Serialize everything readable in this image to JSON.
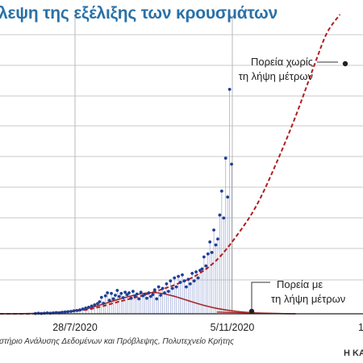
{
  "chart_data": {
    "type": "scatter",
    "title": "λεψη της εξέλιξης των κρουσμάτων",
    "x_tick_labels": [
      "28/7/2020",
      "5/11/2020",
      "1"
    ],
    "annotations": {
      "no_measures": [
        "Πορεία χωρίς",
        "τη λήψη μέτρων"
      ],
      "with_measures": [
        "Πορεία με",
        "τη λήψη μέτρων"
      ]
    },
    "source": "στήριο Ανάλυσης Δεδομένων και Πρόβλεψης, Πολυτεχνείο Κρήτης",
    "credit": "Η ΚΑ",
    "colors": {
      "title": "#2a71a7",
      "observed_points": "#1f3f93",
      "no_measures_curve": "#b01e1e",
      "with_measures_curve": "#a52a2a",
      "grid": "#c8c8c8"
    },
    "grid": true,
    "x_range_days": [
      0,
      352
    ],
    "y_range": [
      0,
      1
    ],
    "series": [
      {
        "key": "observed",
        "style": "points-with-stems",
        "points": [
          [
            36,
            0.001
          ],
          [
            39,
            0.002
          ],
          [
            42,
            0.001
          ],
          [
            45,
            0.002
          ],
          [
            48,
            0.003
          ],
          [
            51,
            0.002
          ],
          [
            54,
            0.003
          ],
          [
            57,
            0.004
          ],
          [
            60,
            0.003
          ],
          [
            63,
            0.005
          ],
          [
            66,
            0.006
          ],
          [
            69,
            0.007
          ],
          [
            72,
            0.008
          ],
          [
            75,
            0.01
          ],
          [
            78,
            0.011
          ],
          [
            81,
            0.013
          ],
          [
            84,
            0.016
          ],
          [
            87,
            0.019
          ],
          [
            90,
            0.022
          ],
          [
            93,
            0.026
          ],
          [
            96,
            0.03
          ],
          [
            99,
            0.034
          ],
          [
            101,
            0.04
          ],
          [
            103,
            0.055
          ],
          [
            105,
            0.035
          ],
          [
            107,
            0.06
          ],
          [
            109,
            0.07
          ],
          [
            111,
            0.045
          ],
          [
            113,
            0.068
          ],
          [
            115,
            0.05
          ],
          [
            117,
            0.062
          ],
          [
            119,
            0.078
          ],
          [
            121,
            0.058
          ],
          [
            123,
            0.068
          ],
          [
            125,
            0.054
          ],
          [
            127,
            0.072
          ],
          [
            129,
            0.064
          ],
          [
            131,
            0.07
          ],
          [
            133,
            0.052
          ],
          [
            135,
            0.075
          ],
          [
            137,
            0.06
          ],
          [
            139,
            0.066
          ],
          [
            141,
            0.05
          ],
          [
            143,
            0.072
          ],
          [
            145,
            0.06
          ],
          [
            147,
            0.065
          ],
          [
            149,
            0.052
          ],
          [
            151,
            0.07
          ],
          [
            153,
            0.058
          ],
          [
            155,
            0.064
          ],
          [
            157,
            0.08
          ],
          [
            159,
            0.05
          ],
          [
            161,
            0.09
          ],
          [
            163,
            0.062
          ],
          [
            165,
            0.085
          ],
          [
            167,
            0.07
          ],
          [
            169,
            0.1
          ],
          [
            171,
            0.075
          ],
          [
            173,
            0.11
          ],
          [
            175,
            0.085
          ],
          [
            177,
            0.12
          ],
          [
            179,
            0.09
          ],
          [
            181,
            0.125
          ],
          [
            183,
            0.105
          ],
          [
            185,
            0.13
          ],
          [
            187,
            0.11
          ],
          [
            189,
            0.09
          ],
          [
            191,
            0.115
          ],
          [
            193,
            0.1
          ],
          [
            195,
            0.135
          ],
          [
            197,
            0.11
          ],
          [
            199,
            0.14
          ],
          [
            201,
            0.12
          ],
          [
            203,
            0.145
          ],
          [
            205,
            0.15
          ],
          [
            207,
            0.19
          ],
          [
            209,
            0.16
          ],
          [
            211,
            0.2
          ],
          [
            213,
            0.24
          ],
          [
            215,
            0.205
          ],
          [
            217,
            0.28
          ],
          [
            219,
            0.23
          ],
          [
            221,
            0.25
          ],
          [
            223,
            0.33
          ],
          [
            225,
            0.41
          ],
          [
            227,
            0.32
          ],
          [
            229,
            0.52
          ],
          [
            231,
            0.39
          ],
          [
            233,
            0.75
          ],
          [
            235,
            0.5
          ]
        ]
      },
      {
        "key": "no_measures",
        "style": "dashed-line",
        "points": [
          [
            0,
            0.0
          ],
          [
            40,
            0.001
          ],
          [
            80,
            0.01
          ],
          [
            100,
            0.022
          ],
          [
            120,
            0.04
          ],
          [
            140,
            0.057
          ],
          [
            160,
            0.077
          ],
          [
            180,
            0.1
          ],
          [
            200,
            0.13
          ],
          [
            220,
            0.18
          ],
          [
            240,
            0.26
          ],
          [
            260,
            0.36
          ],
          [
            280,
            0.5
          ],
          [
            300,
            0.66
          ],
          [
            320,
            0.84
          ],
          [
            332,
            0.94
          ],
          [
            345,
            1.0
          ]
        ]
      },
      {
        "key": "with_measures",
        "style": "solid-line",
        "points": [
          [
            0,
            0.0
          ],
          [
            40,
            0.002
          ],
          [
            80,
            0.012
          ],
          [
            100,
            0.028
          ],
          [
            120,
            0.048
          ],
          [
            140,
            0.065
          ],
          [
            150,
            0.07
          ],
          [
            160,
            0.07
          ],
          [
            175,
            0.06
          ],
          [
            190,
            0.045
          ],
          [
            205,
            0.03
          ],
          [
            220,
            0.018
          ],
          [
            240,
            0.008
          ],
          [
            260,
            0.003
          ],
          [
            280,
            0.001
          ],
          [
            300,
            0.0
          ]
        ]
      },
      {
        "key": "with_measures_tail",
        "style": "solid-line",
        "points": [
          [
            220,
            0.006
          ],
          [
            262,
            0.002
          ],
          [
            300,
            0.0
          ]
        ]
      }
    ]
  }
}
